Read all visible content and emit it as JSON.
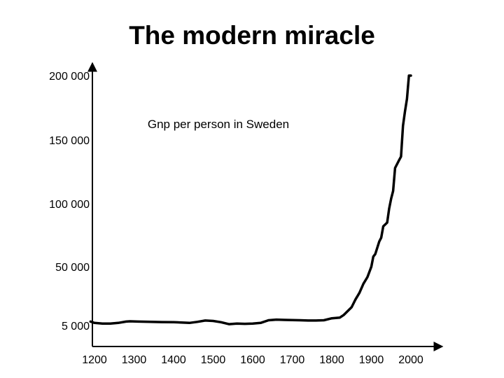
{
  "slide": {
    "title": "The modern miracle"
  },
  "chart_data": {
    "type": "line",
    "title": "The modern miracle",
    "annotation": "Gnp per person in Sweden",
    "xlabel": "",
    "ylabel": "",
    "x_ticks": [
      "1200",
      "1300",
      "1400",
      "1500",
      "1600",
      "1700",
      "1800",
      "1900",
      "2000"
    ],
    "x_tick_values": [
      1200,
      1300,
      1400,
      1500,
      1600,
      1700,
      1800,
      1900,
      2000
    ],
    "y_ticks": [
      "5 000",
      "50 000",
      "100 000",
      "150 000",
      "200 000"
    ],
    "y_tick_values": [
      5000,
      50000,
      100000,
      150000,
      200000
    ],
    "xlim": [
      1200,
      2000
    ],
    "ylim": [
      5000,
      200000
    ],
    "grid": false,
    "legend": "none",
    "line_color": "#000000",
    "series": [
      {
        "x": [
          1190,
          1200,
          1220,
          1240,
          1260,
          1280,
          1290,
          1310,
          1340,
          1370,
          1400,
          1420,
          1440,
          1460,
          1480,
          1500,
          1520,
          1540,
          1560,
          1580,
          1600,
          1620,
          1640,
          1660,
          1680,
          1700,
          1720,
          1740,
          1760,
          1780,
          1800,
          1820,
          1830,
          1840,
          1850,
          1860,
          1870,
          1880,
          1890,
          1900,
          1905,
          1910,
          1920,
          1925,
          1930,
          1940,
          1945,
          1950,
          1955,
          1960,
          1970,
          1975,
          1980,
          1985,
          1990,
          1995,
          2000
        ],
        "y": [
          8000,
          7000,
          6500,
          6500,
          7000,
          8000,
          8200,
          8000,
          7800,
          7600,
          7500,
          7300,
          7000,
          7800,
          8800,
          8500,
          7500,
          6000,
          6500,
          6300,
          6500,
          7000,
          9000,
          9500,
          9300,
          9200,
          9000,
          8800,
          8800,
          9000,
          10500,
          11000,
          13000,
          16000,
          19000,
          25000,
          30000,
          37000,
          42000,
          50000,
          58000,
          60000,
          70000,
          73000,
          82000,
          85000,
          96000,
          104000,
          110000,
          128000,
          134000,
          137000,
          161000,
          172000,
          182000,
          200000,
          200000
        ]
      }
    ]
  }
}
